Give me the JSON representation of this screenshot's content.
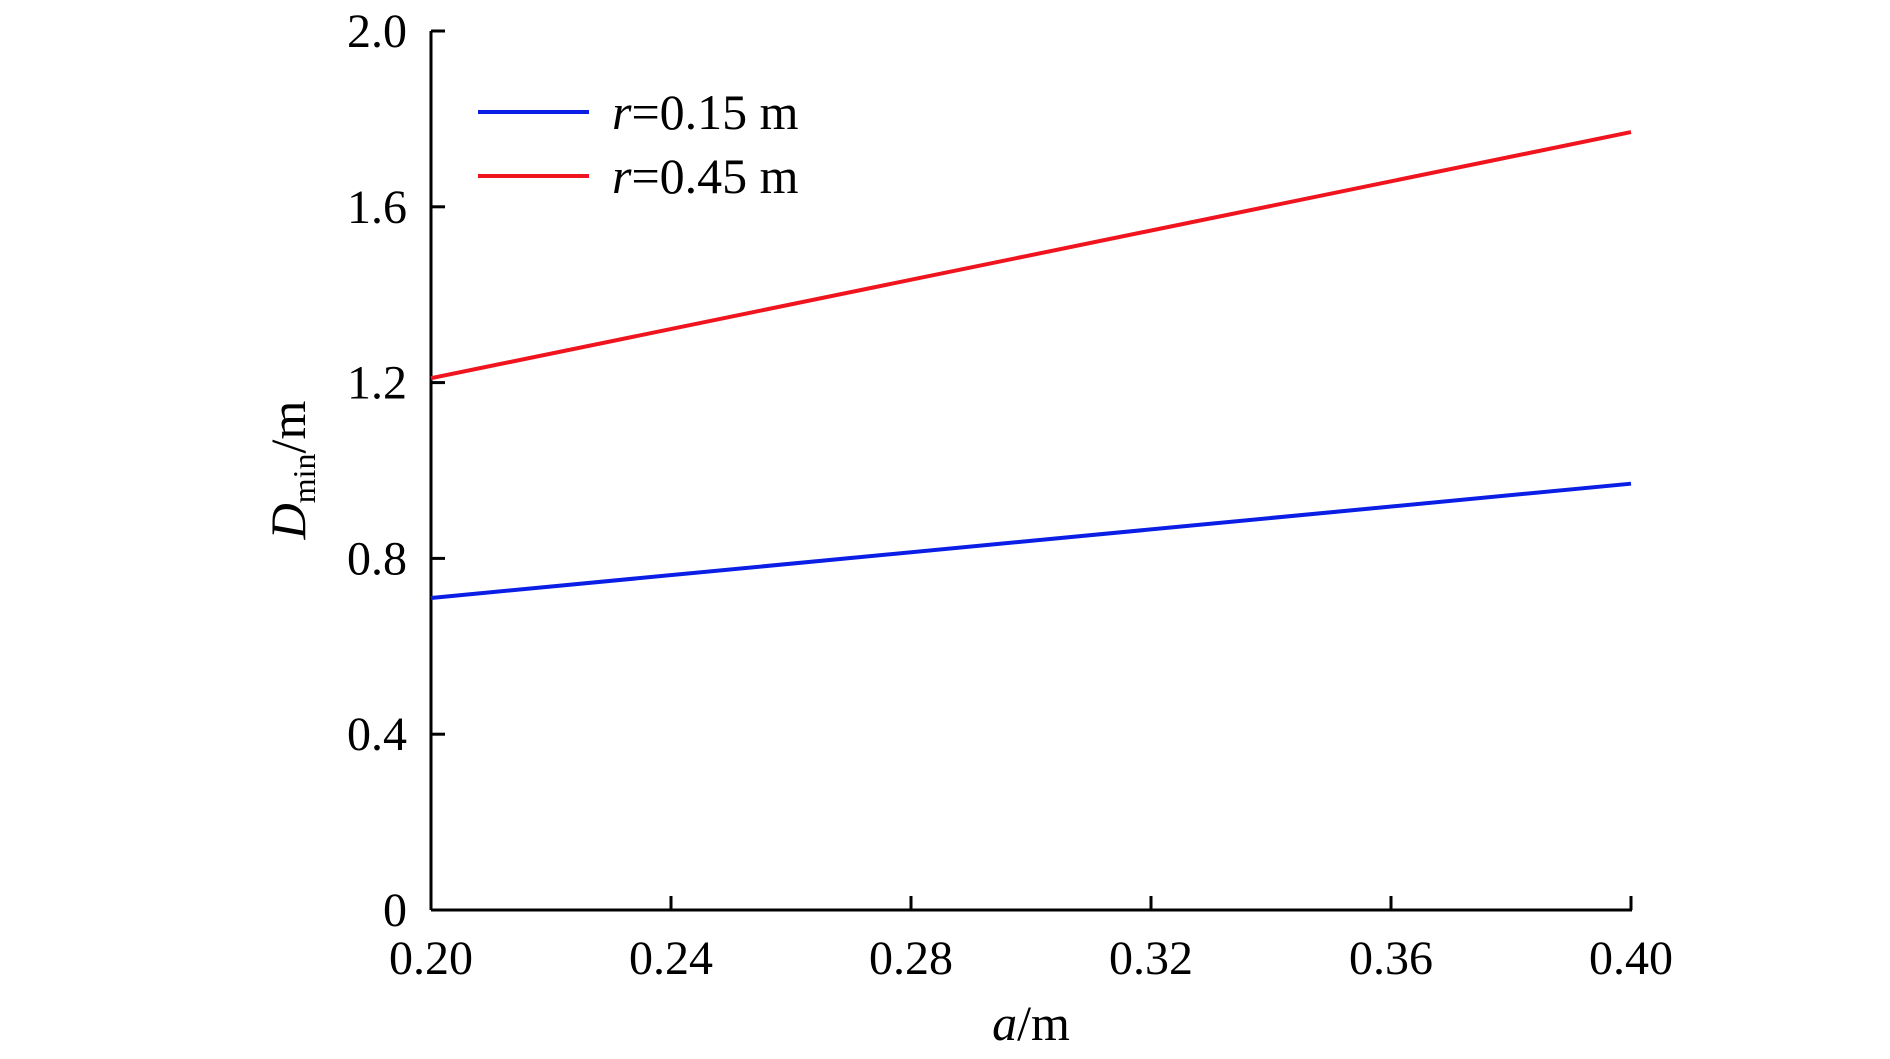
{
  "chart_data": {
    "type": "line",
    "xlabel": "a/m",
    "xlabel_parts": {
      "var": "a",
      "unit": "/m"
    },
    "ylabel": "Dmin/m",
    "ylabel_parts": {
      "var": "D",
      "sub": "min",
      "unit": "/m"
    },
    "xlim": [
      0.2,
      0.4
    ],
    "ylim": [
      0,
      2.0
    ],
    "x_ticks": [
      0.2,
      0.24,
      0.28,
      0.32,
      0.36,
      0.4
    ],
    "x_tick_labels": [
      "0.20",
      "0.24",
      "0.28",
      "0.32",
      "0.36",
      "0.40"
    ],
    "y_ticks": [
      0,
      0.4,
      0.8,
      1.2,
      1.6,
      2.0
    ],
    "y_tick_labels": [
      "0",
      "0.4",
      "0.8",
      "1.2",
      "1.6",
      "2.0"
    ],
    "grid": false,
    "legend_position": "top-left",
    "series": [
      {
        "name": "r=0.15 m",
        "name_parts": {
          "var": "r",
          "rest": "=0.15 m"
        },
        "color": "#0a1ee6",
        "x": [
          0.2,
          0.4
        ],
        "y": [
          0.71,
          0.97
        ]
      },
      {
        "name": "r=0.45 m",
        "name_parts": {
          "var": "r",
          "rest": "=0.45 m"
        },
        "color": "#f0141e",
        "x": [
          0.2,
          0.4
        ],
        "y": [
          1.21,
          1.77
        ]
      }
    ]
  }
}
